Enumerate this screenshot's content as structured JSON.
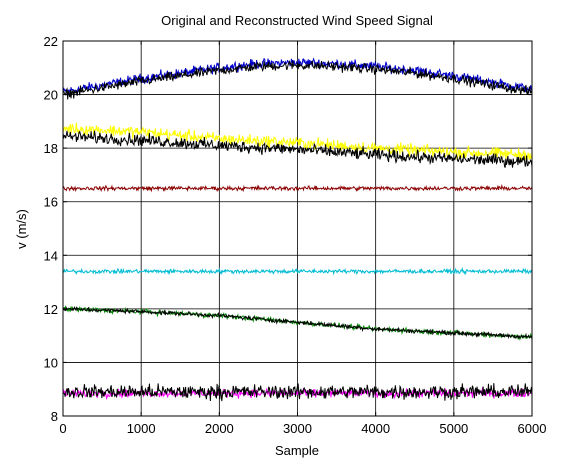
{
  "chart_data": {
    "type": "line",
    "title": "Original and Reconstructed Wind Speed Signal",
    "xlabel": "Sample",
    "ylabel": "v (m/s)",
    "xlim": [
      0,
      6000
    ],
    "ylim": [
      8,
      22
    ],
    "xticks": [
      0,
      1000,
      2000,
      3000,
      4000,
      5000,
      6000
    ],
    "yticks": [
      8,
      10,
      12,
      14,
      16,
      18,
      20,
      22
    ],
    "grid": true,
    "legend": "none",
    "series": [
      {
        "color": "#0000cc",
        "noise": 0.12,
        "x": [
          0,
          500,
          1000,
          1500,
          2000,
          2500,
          3000,
          3500,
          4000,
          4500,
          5000,
          5500,
          6000
        ],
        "values": [
          20.1,
          20.35,
          20.6,
          20.8,
          21.0,
          21.15,
          21.2,
          21.15,
          21.05,
          20.9,
          20.7,
          20.45,
          20.2
        ]
      },
      {
        "color": "#000000",
        "noise": 0.12,
        "x": [
          0,
          500,
          1000,
          1500,
          2000,
          2500,
          3000,
          3500,
          4000,
          4500,
          5000,
          5500,
          6000
        ],
        "values": [
          20.0,
          20.25,
          20.5,
          20.7,
          20.9,
          21.05,
          21.1,
          21.05,
          20.95,
          20.8,
          20.6,
          20.35,
          20.1
        ]
      },
      {
        "color": "#ffff00",
        "noise": 0.15,
        "x": [
          0,
          1000,
          2000,
          3000,
          4000,
          5000,
          6000
        ],
        "values": [
          18.75,
          18.6,
          18.35,
          18.2,
          18.0,
          17.85,
          17.75
        ]
      },
      {
        "color": "#000000",
        "noise": 0.15,
        "x": [
          0,
          1000,
          2000,
          3000,
          4000,
          5000,
          6000
        ],
        "values": [
          18.45,
          18.3,
          18.1,
          17.95,
          17.75,
          17.6,
          17.5
        ]
      },
      {
        "color": "#8b0000",
        "noise": 0.05,
        "x": [
          0,
          6000
        ],
        "values": [
          16.5,
          16.5
        ]
      },
      {
        "color": "#00bcd4",
        "noise": 0.05,
        "x": [
          0,
          6000
        ],
        "values": [
          13.4,
          13.4
        ]
      },
      {
        "color": "#008800",
        "noise": 0.06,
        "x": [
          0,
          1000,
          2000,
          3000,
          4000,
          5000,
          6000
        ],
        "values": [
          12.0,
          11.9,
          11.75,
          11.5,
          11.25,
          11.1,
          10.95
        ]
      },
      {
        "color": "#000000",
        "noise": 0.05,
        "x": [
          0,
          1000,
          2000,
          3000,
          4000,
          5000,
          6000
        ],
        "values": [
          12.0,
          11.9,
          11.75,
          11.5,
          11.25,
          11.1,
          10.95
        ]
      },
      {
        "color": "#ff00ff",
        "noise": 0.1,
        "x": [
          0,
          6000
        ],
        "values": [
          8.85,
          8.85
        ]
      },
      {
        "color": "#000000",
        "noise": 0.18,
        "x": [
          0,
          6000
        ],
        "values": [
          8.9,
          8.9
        ]
      }
    ]
  }
}
